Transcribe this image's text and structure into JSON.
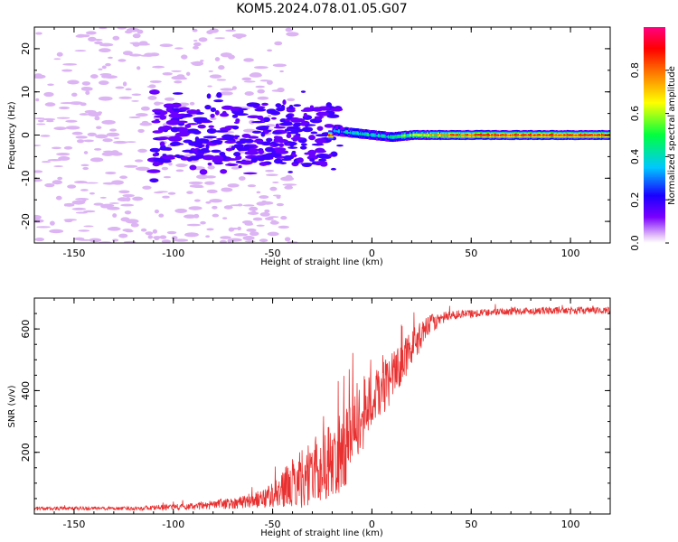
{
  "title": "KOM5.2024.078.01.05.G07",
  "chart_data": [
    {
      "type": "heatmap",
      "xlabel": "Height of straight line (km)",
      "ylabel": "Frequency (Hz)",
      "xlim": [
        -170,
        120
      ],
      "ylim": [
        -25,
        25
      ],
      "xticks": [
        -150,
        -100,
        -50,
        0,
        50,
        100
      ],
      "yticks": [
        -20,
        -10,
        0,
        10,
        20
      ],
      "colorbar": {
        "label": "Normalized spectral amplitude",
        "range": [
          0,
          1
        ],
        "ticks": [
          0.0,
          0.2,
          0.4,
          0.6,
          0.8
        ],
        "colormap": [
          "#e8c8f8",
          "#7a00ff",
          "#1a00ff",
          "#00c8ff",
          "#00ff40",
          "#ffff00",
          "#ff8000",
          "#ff0000",
          "#ff0080"
        ]
      },
      "ridge": {
        "description_points": [
          {
            "x": -20,
            "y": 1.0,
            "amp": 0.35
          },
          {
            "x": -10,
            "y": 0.5,
            "amp": 0.4
          },
          {
            "x": 0,
            "y": 0.0,
            "amp": 0.45
          },
          {
            "x": 10,
            "y": -0.5,
            "amp": 0.45
          },
          {
            "x": 20,
            "y": 0.0,
            "amp": 0.6
          },
          {
            "x": 40,
            "y": 0.0,
            "amp": 0.8
          },
          {
            "x": 60,
            "y": 0.0,
            "amp": 0.85
          },
          {
            "x": 80,
            "y": 0.0,
            "amp": 0.85
          },
          {
            "x": 100,
            "y": 0.0,
            "amp": 0.85
          },
          {
            "x": 120,
            "y": 0.0,
            "amp": 0.85
          }
        ]
      }
    },
    {
      "type": "line",
      "xlabel": "Height of straight line (km)",
      "ylabel": "SNR (v/v)",
      "xlim": [
        -170,
        120
      ],
      "ylim": [
        0,
        700
      ],
      "xticks": [
        -150,
        -100,
        -50,
        0,
        50,
        100
      ],
      "yticks": [
        200,
        400,
        600
      ],
      "color": "#e83030",
      "envelope": [
        {
          "x": -170,
          "mean": 18,
          "spread": 6
        },
        {
          "x": -120,
          "mean": 18,
          "spread": 6
        },
        {
          "x": -90,
          "mean": 25,
          "spread": 12
        },
        {
          "x": -70,
          "mean": 35,
          "spread": 18
        },
        {
          "x": -55,
          "mean": 50,
          "spread": 30
        },
        {
          "x": -45,
          "mean": 80,
          "spread": 60
        },
        {
          "x": -35,
          "mean": 120,
          "spread": 100
        },
        {
          "x": -25,
          "mean": 150,
          "spread": 120
        },
        {
          "x": -15,
          "mean": 200,
          "spread": 130
        },
        {
          "x": -8,
          "mean": 280,
          "spread": 130
        },
        {
          "x": 0,
          "mean": 370,
          "spread": 90
        },
        {
          "x": 10,
          "mean": 440,
          "spread": 80
        },
        {
          "x": 20,
          "mean": 540,
          "spread": 60
        },
        {
          "x": 30,
          "mean": 620,
          "spread": 30
        },
        {
          "x": 40,
          "mean": 645,
          "spread": 15
        },
        {
          "x": 60,
          "mean": 655,
          "spread": 12
        },
        {
          "x": 90,
          "mean": 660,
          "spread": 12
        },
        {
          "x": 120,
          "mean": 660,
          "spread": 12
        }
      ]
    }
  ]
}
